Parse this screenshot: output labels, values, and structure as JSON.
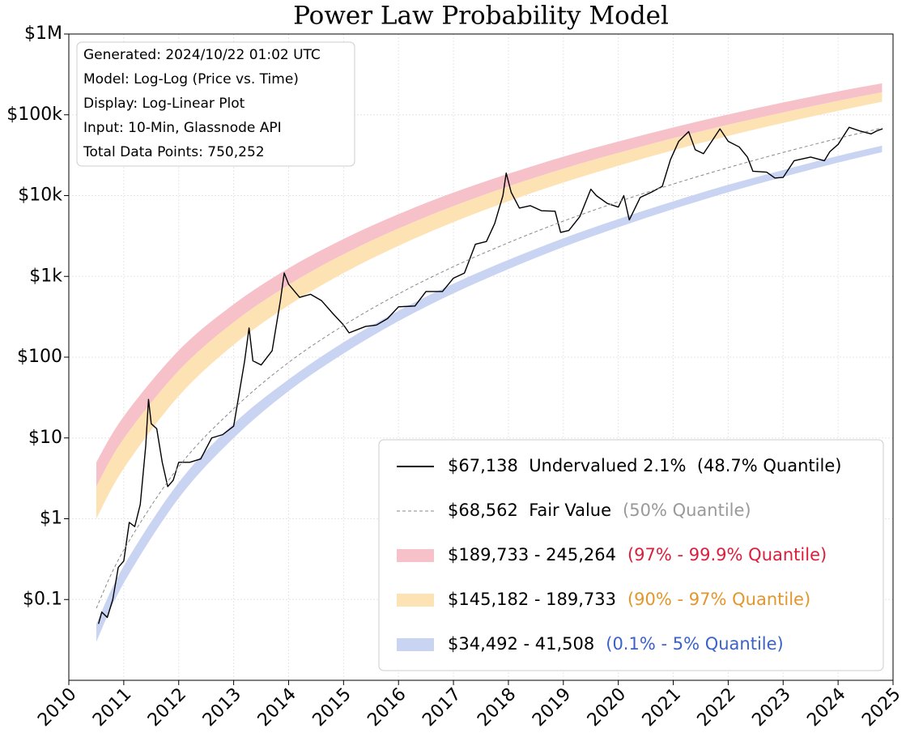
{
  "chart_data": {
    "type": "line",
    "title": "Power Law Probability Model",
    "info": [
      "Generated: 2024/10/22 01:02 UTC",
      "Model: Log-Log (Price vs. Time)",
      "Display: Log-Linear Plot",
      "Input: 10-Min, Glassnode API",
      "Total Data Points: 750,252"
    ],
    "xlim": [
      2010,
      2025
    ],
    "xticks": [
      2010,
      2011,
      2012,
      2013,
      2014,
      2015,
      2016,
      2017,
      2018,
      2019,
      2020,
      2021,
      2022,
      2023,
      2024,
      2025
    ],
    "ylim": [
      0.01,
      1000000
    ],
    "yticks": [
      {
        "value": 1000000,
        "label": "$1M"
      },
      {
        "value": 100000,
        "label": "$100k"
      },
      {
        "value": 10000,
        "label": "$10k"
      },
      {
        "value": 1000,
        "label": "$1k"
      },
      {
        "value": 100,
        "label": "$100"
      },
      {
        "value": 10,
        "label": "$10"
      },
      {
        "value": 1,
        "label": "$1"
      },
      {
        "value": 0.1,
        "label": "$0.1"
      }
    ],
    "log_y": true,
    "grid": true,
    "legend": "lower right",
    "band_x": [
      2010.5,
      2011,
      2012,
      2013,
      2014,
      2015,
      2016,
      2017,
      2018,
      2019,
      2020,
      2021,
      2022,
      2023,
      2024,
      2024.8
    ],
    "series": [
      {
        "name": "$67,138  Undervalued 2.1%  (48.7% Quantile)",
        "color": "#000000",
        "x": [
          2010.54,
          2010.6,
          2010.7,
          2010.8,
          2010.9,
          2011.0,
          2011.1,
          2011.2,
          2011.3,
          2011.4,
          2011.45,
          2011.5,
          2011.6,
          2011.7,
          2011.8,
          2011.9,
          2012.0,
          2012.2,
          2012.4,
          2012.6,
          2012.8,
          2013.0,
          2013.2,
          2013.28,
          2013.35,
          2013.5,
          2013.7,
          2013.85,
          2013.92,
          2014.0,
          2014.2,
          2014.4,
          2014.6,
          2014.8,
          2015.0,
          2015.1,
          2015.4,
          2015.6,
          2015.8,
          2016.0,
          2016.3,
          2016.5,
          2016.8,
          2017.0,
          2017.2,
          2017.4,
          2017.6,
          2017.75,
          2017.9,
          2017.96,
          2018.05,
          2018.2,
          2018.4,
          2018.6,
          2018.85,
          2018.95,
          2019.1,
          2019.3,
          2019.5,
          2019.6,
          2019.8,
          2020.0,
          2020.1,
          2020.2,
          2020.4,
          2020.6,
          2020.8,
          2020.95,
          2021.1,
          2021.28,
          2021.4,
          2021.55,
          2021.7,
          2021.85,
          2022.0,
          2022.2,
          2022.35,
          2022.45,
          2022.7,
          2022.85,
          2023.0,
          2023.2,
          2023.5,
          2023.75,
          2023.85,
          2024.0,
          2024.2,
          2024.4,
          2024.6,
          2024.7,
          2024.81
        ],
        "values": [
          0.05,
          0.07,
          0.06,
          0.1,
          0.25,
          0.3,
          0.9,
          0.8,
          1.5,
          8,
          30,
          15,
          13,
          5,
          2.5,
          3,
          5,
          5,
          5.5,
          10,
          11,
          14,
          90,
          230,
          90,
          80,
          120,
          500,
          1100,
          800,
          550,
          600,
          500,
          350,
          250,
          200,
          240,
          250,
          300,
          420,
          430,
          650,
          650,
          950,
          1100,
          2500,
          2700,
          4500,
          10000,
          19000,
          11000,
          7000,
          7500,
          6500,
          6400,
          3500,
          3700,
          5500,
          12000,
          10000,
          8000,
          7200,
          10000,
          5000,
          9500,
          11000,
          13000,
          28000,
          47000,
          62000,
          37000,
          33000,
          47000,
          67000,
          47000,
          40000,
          30000,
          20000,
          19500,
          16500,
          16800,
          27000,
          30000,
          27000,
          35000,
          43000,
          70000,
          63000,
          58000,
          63000,
          67138
        ]
      },
      {
        "name": "$68,562  Fair Value",
        "quantile": "(50% Quantile)",
        "quantile_color": "#999999",
        "color": "#888888",
        "dashed": true,
        "values": [
          0.078,
          0.41,
          4.4,
          23,
          86,
          247,
          607,
          1320,
          2610,
          4830,
          8380,
          13900,
          22200,
          34200,
          51100,
          68562
        ]
      }
    ],
    "bands": [
      {
        "name": "$189,733 - 245,264",
        "quantile": "(97% - 99.9% Quantile)",
        "quantile_color": "#dc1e3c",
        "color": "#f6c1c9",
        "lower": [
          2.5,
          9.8,
          68,
          270,
          785,
          1875,
          3910,
          7400,
          13000,
          21500,
          33700,
          51300,
          75300,
          107000,
          149000,
          189733
        ],
        "upper": [
          5,
          18.5,
          121,
          451,
          1260,
          2900,
          5890,
          10900,
          18600,
          30300,
          46700,
          69800,
          101000,
          142000,
          195000,
          245264
        ]
      },
      {
        "name": "$145,182 - 189,733",
        "quantile": "(90% - 97% Quantile)",
        "quantile_color": "#e5962a",
        "color": "#fde2b3",
        "lower": [
          1,
          4.2,
          33,
          142,
          438,
          1100,
          2390,
          4700,
          8510,
          14500,
          23400,
          36400,
          54700,
          79300,
          112000,
          145182
        ],
        "upper": [
          2.5,
          9.8,
          68,
          270,
          785,
          1875,
          3910,
          7400,
          13000,
          21500,
          33700,
          51300,
          75300,
          107000,
          149000,
          189733
        ]
      },
      {
        "name": "$34,492 - 41,508",
        "quantile": "(0.1% - 5% Quantile)",
        "quantile_color": "#3b62c8",
        "color": "#c9d3f2",
        "lower": [
          0.03,
          0.16,
          1.8,
          10,
          38,
          111,
          279,
          615,
          1230,
          2310,
          4050,
          6810,
          11000,
          17000,
          25600,
          34492
        ],
        "upper": [
          0.05,
          0.26,
          2.8,
          15,
          53,
          153,
          375,
          813,
          1600,
          2960,
          5120,
          8490,
          13600,
          20700,
          31000,
          41508
        ]
      }
    ]
  }
}
